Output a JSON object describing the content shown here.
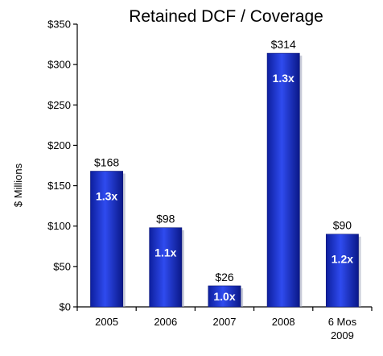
{
  "chart_data": {
    "type": "bar",
    "title": "Retained DCF / Coverage",
    "xlabel": "",
    "ylabel": "$ Millions",
    "ylim": [
      0,
      350
    ],
    "yticks": [
      0,
      50,
      100,
      150,
      200,
      250,
      300,
      350
    ],
    "ytick_labels": [
      "$0",
      "$50",
      "$100",
      "$150",
      "$200",
      "$250",
      "$300",
      "$350"
    ],
    "categories": [
      [
        "2005"
      ],
      [
        "2006"
      ],
      [
        "2007"
      ],
      [
        "2008"
      ],
      [
        "6 Mos",
        "2009"
      ]
    ],
    "values": [
      168,
      98,
      26,
      314,
      90
    ],
    "value_labels": [
      "$168",
      "$98",
      "$26",
      "$314",
      "$90"
    ],
    "coverage_labels": [
      "1.3x",
      "1.1x",
      "1.0x",
      "1.3x",
      "1.2x"
    ],
    "grid": false,
    "legend": "none",
    "bar_color": "#1f35d6"
  }
}
